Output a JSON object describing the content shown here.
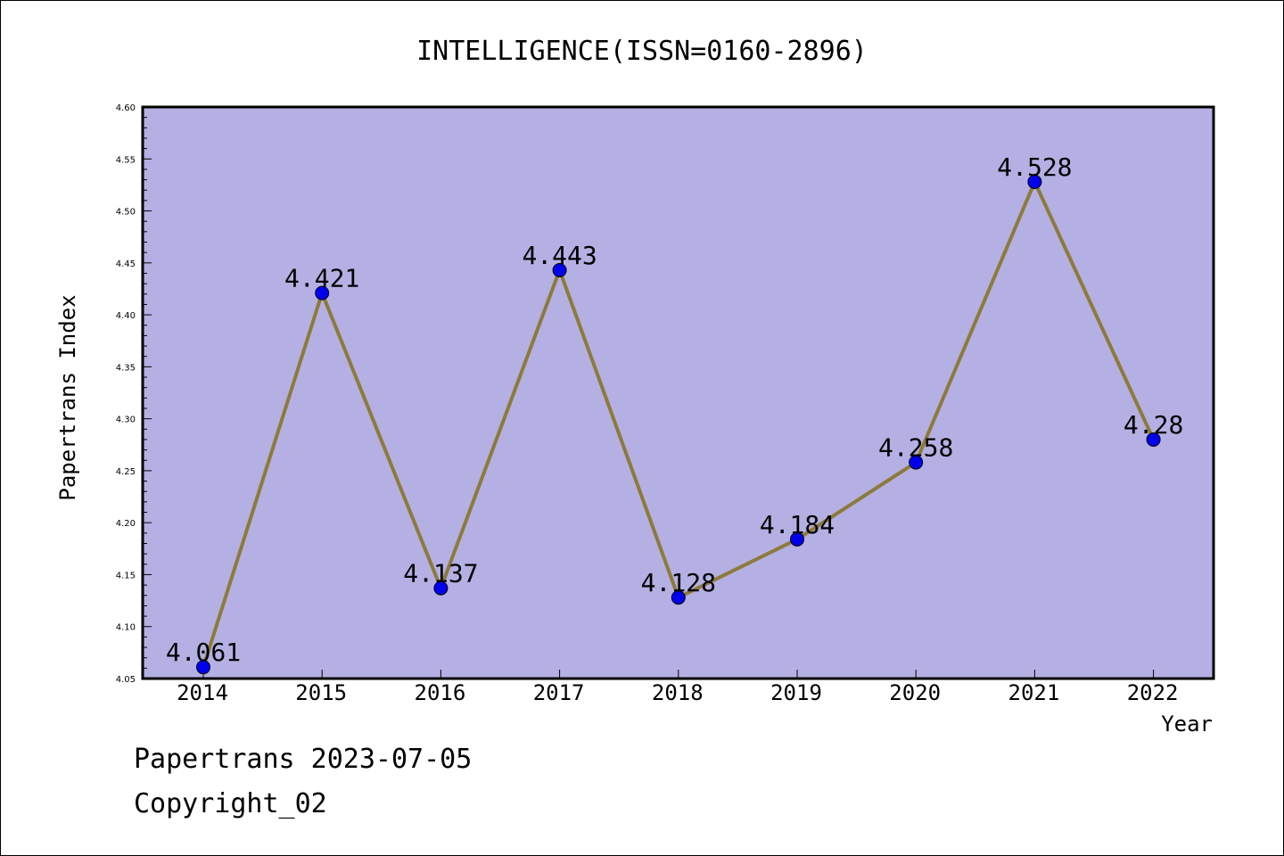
{
  "chart_data": {
    "type": "line",
    "title": "INTELLIGENCE(ISSN=0160-2896)",
    "xlabel": "Year",
    "ylabel": "Papertrans Index",
    "categories": [
      "2014",
      "2015",
      "2016",
      "2017",
      "2018",
      "2019",
      "2020",
      "2021",
      "2022"
    ],
    "values": [
      4.061,
      4.421,
      4.137,
      4.443,
      4.128,
      4.184,
      4.258,
      4.528,
      4.28
    ],
    "data_labels": [
      "4.061",
      "4.421",
      "4.137",
      "4.443",
      "4.128",
      "4.184",
      "4.258",
      "4.528",
      "4.28"
    ],
    "ylim": [
      4.05,
      4.6
    ],
    "yticks": [
      "4.05",
      "4.10",
      "4.15",
      "4.20",
      "4.25",
      "4.30",
      "4.35",
      "4.40",
      "4.45",
      "4.50",
      "4.55",
      "4.60"
    ],
    "grid": false,
    "legend": "none",
    "colors": {
      "plot_background": "#b5b0e3",
      "line": "#8d7a3c",
      "marker": "#0000ee"
    }
  },
  "footer": {
    "line1": "Papertrans 2023-07-05",
    "line2": "Copyright_02"
  }
}
